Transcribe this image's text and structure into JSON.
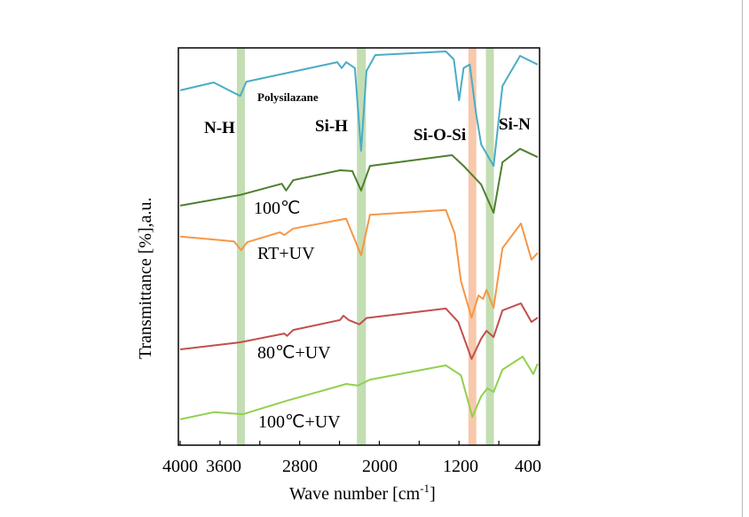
{
  "chart_data": {
    "type": "line",
    "title": "",
    "xlabel": "Wave number [cm",
    "xlabel_sup": "-1",
    "xlabel_end": "]",
    "ylabel": "Transmittance [%],a.u.",
    "xlim": [
      4000,
      400
    ],
    "ylim": [
      0,
      100
    ],
    "x_reversed": true,
    "grid": false,
    "xticks": [
      4000,
      3600,
      2800,
      2000,
      1200,
      400
    ],
    "xtick_labels": [
      "4000",
      "3600",
      "2800",
      "2000",
      "1200",
      "400"
    ],
    "minor_xticks": [
      3200,
      2400,
      1600,
      800
    ],
    "bands": [
      {
        "label": "N-H",
        "center": 3390,
        "width": 80,
        "color": "#c3deb3"
      },
      {
        "label": "Si-H",
        "center": 2180,
        "width": 90,
        "color": "#c3deb3"
      },
      {
        "label": "Si-O-Si",
        "center": 1066,
        "width": 80,
        "color": "#f8c8ab"
      },
      {
        "label": "Si-N",
        "center": 890,
        "width": 80,
        "color": "#c3deb3"
      }
    ],
    "series": [
      {
        "name": "Polysilazane",
        "color": "#4bacc6",
        "x": [
          4000,
          3663,
          3397,
          3335,
          2422,
          2378,
          2333,
          2245,
          2183,
          2129,
          2041,
          1332,
          1252,
          1199,
          1154,
          1092,
          1030,
          977,
          853,
          764,
          587,
          410
        ],
        "y": [
          89.3,
          91.3,
          87.9,
          91.5,
          96.4,
          94.9,
          96.4,
          94.9,
          74.1,
          94.2,
          98.2,
          99.1,
          97.1,
          86.8,
          94.9,
          95.8,
          83.7,
          75.7,
          70.3,
          90.4,
          98.0,
          95.8
        ]
      },
      {
        "name": "100℃",
        "color": "#4f7f2f",
        "x": [
          4000,
          3397,
          2980,
          2936,
          2865,
          2395,
          2271,
          2183,
          2094,
          1270,
          1154,
          977,
          853,
          764,
          587,
          410
        ],
        "y": [
          60.3,
          63.0,
          65.8,
          64.1,
          66.7,
          69.2,
          69.0,
          64.1,
          70.3,
          73.0,
          70.3,
          65.6,
          58.5,
          71.2,
          74.6,
          72.5
        ]
      },
      {
        "name": "RT+UV",
        "color": "#f79646",
        "x": [
          4000,
          3459,
          3388,
          3326,
          2998,
          2954,
          2865,
          2333,
          2183,
          2094,
          1332,
          1243,
          1181,
          1074,
          1004,
          959,
          924,
          853,
          764,
          578,
          472,
          410
        ],
        "y": [
          52.5,
          51.3,
          49.1,
          51.1,
          53.6,
          52.9,
          54.5,
          57.0,
          47.8,
          58.0,
          59.2,
          53.3,
          41.3,
          32.1,
          37.7,
          36.8,
          39.1,
          34.6,
          49.6,
          55.8,
          46.7,
          48.4
        ]
      },
      {
        "name": "80℃+UV",
        "color": "#c0504d",
        "x": [
          4000,
          3397,
          2954,
          2927,
          2865,
          2395,
          2360,
          2307,
          2200,
          2129,
          1332,
          1207,
          1074,
          977,
          924,
          853,
          764,
          578,
          472,
          410
        ],
        "y": [
          24.1,
          25.9,
          28.1,
          27.5,
          29.0,
          31.5,
          32.6,
          31.5,
          30.4,
          32.0,
          34.4,
          31.0,
          21.7,
          26.8,
          28.8,
          27.2,
          33.9,
          35.7,
          31.0,
          32.1
        ]
      },
      {
        "name": "100℃+UV",
        "color": "#92d050",
        "x": [
          4000,
          3663,
          3370,
          2927,
          2333,
          2218,
          2094,
          1332,
          1181,
          1066,
          977,
          915,
          853,
          764,
          560,
          454,
          410
        ],
        "y": [
          6.5,
          8.3,
          7.8,
          11.2,
          15.4,
          15.0,
          16.5,
          20.1,
          17.6,
          7.1,
          12.3,
          14.3,
          13.4,
          19.0,
          22.3,
          17.9,
          20.5
        ]
      }
    ],
    "annotations": {
      "polysilazane": "Polysilazane",
      "nh": "N-H",
      "sih": "Si-H",
      "sios": "Si-O-Si",
      "sin": "Si-N",
      "t100": "100℃",
      "rtuv": "RT+UV",
      "t80uv": "80℃+UV",
      "t100uv": "100℃+UV"
    }
  }
}
